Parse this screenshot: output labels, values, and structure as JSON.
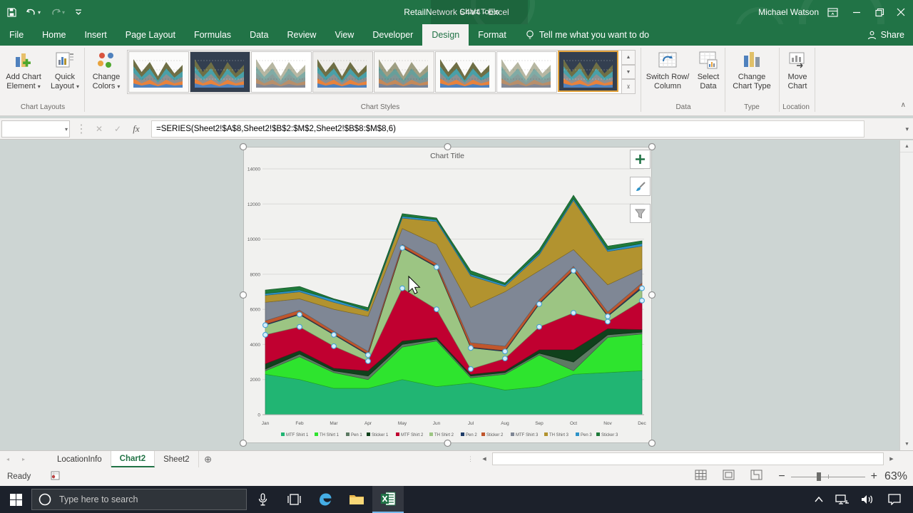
{
  "titlebar": {
    "title": "RetailNetwork S4V4  -  Excel",
    "context_group": "Chart Tools",
    "user": "Michael Watson"
  },
  "ribbon_tabs": {
    "items": [
      "File",
      "Home",
      "Insert",
      "Page Layout",
      "Formulas",
      "Data",
      "Review",
      "View",
      "Developer",
      "Design",
      "Format"
    ],
    "active": "Design",
    "tell_me": "Tell me what you want to do",
    "share": "Share"
  },
  "ribbon": {
    "buttons": {
      "add_chart_element": {
        "line1": "Add Chart",
        "line2": "Element"
      },
      "quick_layout": {
        "line1": "Quick",
        "line2": "Layout"
      },
      "change_colors": {
        "line1": "Change",
        "line2": "Colors"
      },
      "switch_row_column": {
        "line1": "Switch Row/",
        "line2": "Column"
      },
      "select_data": {
        "line1": "Select",
        "line2": "Data"
      },
      "change_chart_type": {
        "line1": "Change",
        "line2": "Chart Type"
      },
      "move_chart": {
        "line1": "Move",
        "line2": "Chart"
      }
    },
    "captions": {
      "chart_layouts": "Chart Layouts",
      "chart_styles": "Chart Styles",
      "data": "Data",
      "type": "Type",
      "location": "Location"
    },
    "style_thumbnails": [
      {
        "name": "style-1",
        "bg": "#fbfbfa",
        "mode": "solid",
        "selected": false
      },
      {
        "name": "style-2",
        "bg": "#333f50",
        "mode": "solid",
        "selected": false
      },
      {
        "name": "style-3",
        "bg": "#ffffff",
        "mode": "sketch",
        "selected": false
      },
      {
        "name": "style-4",
        "bg": "#f0efed",
        "mode": "solid",
        "selected": false
      },
      {
        "name": "style-5",
        "bg": "#f7f6f4",
        "mode": "pale",
        "selected": false
      },
      {
        "name": "style-6",
        "bg": "#fbfbfa",
        "mode": "solid",
        "selected": false
      },
      {
        "name": "style-7",
        "bg": "#ffffff",
        "mode": "sketch",
        "selected": false
      },
      {
        "name": "style-8",
        "bg": "#333f50",
        "mode": "solid",
        "selected": true
      }
    ]
  },
  "formula_bar": {
    "name_box": "",
    "formula": "=SERIES(Sheet2!$A$8,Sheet2!$B$2:$M$2,Sheet2!$B$8:$M$8,6)"
  },
  "chart_data": {
    "type": "area",
    "stacked": true,
    "title": "Chart Title",
    "categories": [
      "Jan",
      "Feb",
      "Mar",
      "Apr",
      "May",
      "Jun",
      "Jul",
      "Aug",
      "Sep",
      "Oct",
      "Nov",
      "Dec"
    ],
    "ylim": [
      0,
      14000
    ],
    "ytick_step": 2000,
    "yticks": [
      "0",
      "2000",
      "4000",
      "6000",
      "8000",
      "10000",
      "12000",
      "14000"
    ],
    "grid": true,
    "legend_position": "bottom",
    "selected_series": "TH Shirt 2",
    "series": [
      {
        "name": "MTF Shirt 1",
        "color": "#21b573",
        "values": [
          2300,
          2000,
          1500,
          1500,
          2000,
          1600,
          1800,
          1400,
          1600,
          2300,
          2400,
          2500
        ]
      },
      {
        "name": "TH Shirt 1",
        "color": "#2ee42e",
        "values": [
          200,
          1300,
          900,
          500,
          1850,
          2600,
          300,
          900,
          1800,
          200,
          2000,
          2100
        ]
      },
      {
        "name": "Pen 1",
        "color": "#5d7a63",
        "values": [
          100,
          150,
          100,
          200,
          150,
          100,
          100,
          100,
          100,
          500,
          150,
          100
        ]
      },
      {
        "name": "Sticker 1",
        "color": "#10411c",
        "values": [
          300,
          200,
          150,
          300,
          200,
          100,
          100,
          100,
          200,
          700,
          350,
          150
        ]
      },
      {
        "name": "MTF Shirt 2",
        "color": "#c00030",
        "values": [
          1650,
          1350,
          1250,
          550,
          3000,
          1600,
          300,
          700,
          1300,
          2100,
          400,
          1650
        ]
      },
      {
        "name": "TH Shirt 2",
        "color": "#9cc583",
        "values": [
          550,
          700,
          650,
          350,
          2300,
          2400,
          1200,
          400,
          1300,
          2400,
          300,
          700
        ]
      },
      {
        "name": "Pen 2",
        "color": "#1f3d68",
        "values": [
          50,
          50,
          50,
          50,
          50,
          50,
          50,
          50,
          50,
          50,
          50,
          100
        ]
      },
      {
        "name": "Sticker 2",
        "color": "#c0562c",
        "values": [
          200,
          200,
          150,
          150,
          150,
          150,
          250,
          250,
          200,
          200,
          200,
          200
        ]
      },
      {
        "name": "MTF Shirt 3",
        "color": "#7f8795",
        "values": [
          1050,
          650,
          1250,
          2000,
          900,
          1100,
          2000,
          3100,
          1650,
          950,
          1550,
          800
        ]
      },
      {
        "name": "TH Shirt 3",
        "color": "#b2932f",
        "values": [
          400,
          400,
          400,
          300,
          600,
          1300,
          1800,
          300,
          900,
          2800,
          1900,
          1300
        ]
      },
      {
        "name": "Pen 3",
        "color": "#2e93c8",
        "values": [
          100,
          100,
          150,
          50,
          100,
          100,
          100,
          100,
          100,
          100,
          100,
          150
        ]
      },
      {
        "name": "Sticker 3",
        "color": "#1f7a3a",
        "values": [
          200,
          200,
          50,
          150,
          150,
          100,
          200,
          100,
          200,
          200,
          200,
          150
        ]
      }
    ]
  },
  "sheet_tabs": {
    "tabs": [
      {
        "label": "LocationInfo",
        "active": false
      },
      {
        "label": "Chart2",
        "active": true
      },
      {
        "label": "Sheet2",
        "active": false
      }
    ]
  },
  "status_bar": {
    "mode": "Ready",
    "zoom": "63%"
  },
  "taskbar": {
    "search_placeholder": "Type here to search"
  },
  "glyphs": {
    "dropdown": "▾",
    "up_arrow": "▲",
    "down_arrow": "▼",
    "left_arrow": "◀",
    "right_arrow": "▶",
    "more": "▼",
    "collapse": "∧",
    "back": "◂",
    "fwd": "▸",
    "add": "+",
    "minus": "−",
    "plus": "+",
    "dots": "⋮",
    "cancel": "✕",
    "enter": "✓",
    "fx": "fx",
    "expand": "▾",
    "tray": "∧"
  },
  "colors": {
    "excel_green": "#217346",
    "ribbon_bg": "#f3f2f1",
    "sheet_bg": "#cdd5d3",
    "chart_bg": "#f1f1ef",
    "gridline": "#d9d9d7",
    "axis_text": "#595959",
    "marker_fill": "#d6ecf9",
    "marker_stroke": "#41a0d4",
    "taskbar_bg": "#1c212b",
    "selection_accent": "#e2a33d"
  }
}
